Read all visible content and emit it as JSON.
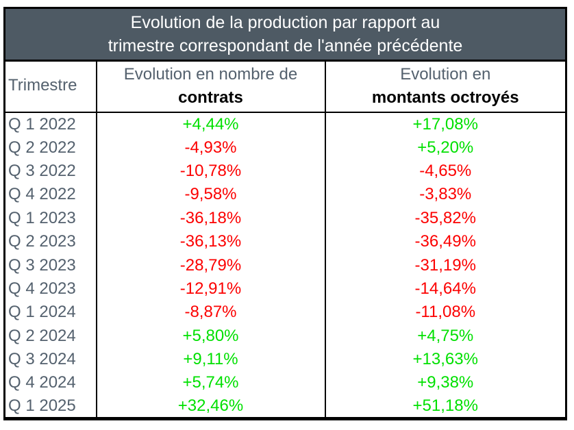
{
  "title": {
    "line1": "Evolution de la production par rapport au",
    "line2": "trimestre correspondant de l'année précédente"
  },
  "table": {
    "headers": {
      "quarter": "Trimestre",
      "contracts_top": "Evolution en nombre de",
      "contracts_bottom": "contrats",
      "amounts_top": "Evolution en",
      "amounts_bottom": "montants octroyés"
    },
    "rows": [
      {
        "quarter": "Q 1 2022",
        "contracts": "+4,44%",
        "amounts": "+17,08%"
      },
      {
        "quarter": "Q 2 2022",
        "contracts": "-4,93%",
        "amounts": "+5,20%"
      },
      {
        "quarter": "Q 3 2022",
        "contracts": "-10,78%",
        "amounts": "-4,65%"
      },
      {
        "quarter": "Q 4 2022",
        "contracts": "-9,58%",
        "amounts": "-3,83%"
      },
      {
        "quarter": "Q 1 2023",
        "contracts": "-36,18%",
        "amounts": "-35,82%"
      },
      {
        "quarter": "Q 2 2023",
        "contracts": "-36,13%",
        "amounts": "-36,49%"
      },
      {
        "quarter": "Q 3 2023",
        "contracts": "-28,79%",
        "amounts": "-31,19%"
      },
      {
        "quarter": "Q 4 2023",
        "contracts": "-12,91%",
        "amounts": "-14,64%"
      },
      {
        "quarter": "Q 1 2024",
        "contracts": "-8,87%",
        "amounts": "-11,08%"
      },
      {
        "quarter": "Q 2 2024",
        "contracts": "+5,80%",
        "amounts": "+4,75%"
      },
      {
        "quarter": "Q 3 2024",
        "contracts": "+9,11%",
        "amounts": "+13,63%"
      },
      {
        "quarter": "Q 4 2024",
        "contracts": "+5,74%",
        "amounts": "+9,38%"
      },
      {
        "quarter": "Q 1 2025",
        "contracts": "+32,46%",
        "amounts": "+51,18%"
      }
    ]
  },
  "colors": {
    "title_background": "#4e5a64",
    "title_text": "#ffffff",
    "label_text": "#54616e",
    "positive": "#00e000",
    "negative": "#fc0000",
    "border": "#000000"
  },
  "chart_data": {
    "type": "table",
    "title": "Evolution de la production par rapport au trimestre correspondant de l'année précédente",
    "columns": [
      "Trimestre",
      "Evolution en nombre de contrats",
      "Evolution en montants octroyés"
    ],
    "categories": [
      "Q1 2022",
      "Q2 2022",
      "Q3 2022",
      "Q4 2022",
      "Q1 2023",
      "Q2 2023",
      "Q3 2023",
      "Q4 2023",
      "Q1 2024",
      "Q2 2024",
      "Q3 2024",
      "Q4 2024",
      "Q1 2025"
    ],
    "series": [
      {
        "name": "Evolution en nombre de contrats",
        "values": [
          4.44,
          -4.93,
          -10.78,
          -9.58,
          -36.18,
          -36.13,
          -28.79,
          -12.91,
          -8.87,
          5.8,
          9.11,
          5.74,
          32.46
        ]
      },
      {
        "name": "Evolution en montants octroyés",
        "values": [
          17.08,
          5.2,
          -4.65,
          -3.83,
          -35.82,
          -36.49,
          -31.19,
          -14.64,
          -11.08,
          4.75,
          13.63,
          9.38,
          51.18
        ]
      }
    ],
    "unit": "%",
    "value_color_rule": "positive values green, negative values red"
  }
}
